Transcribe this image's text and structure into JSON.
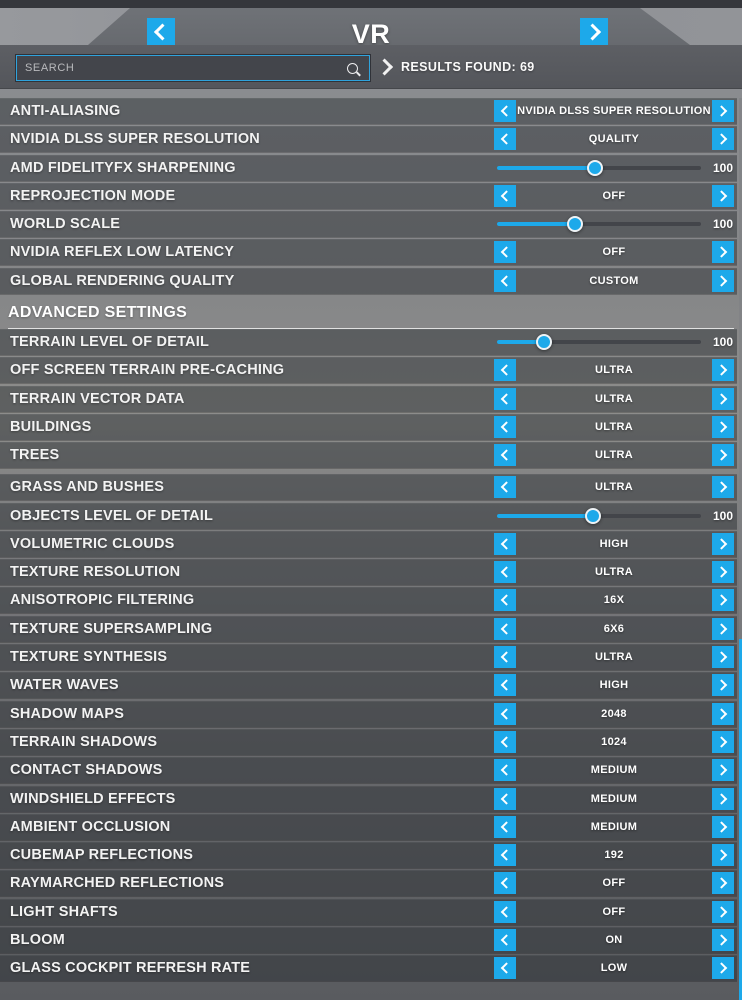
{
  "colors": {
    "accent": "#1da9ea"
  },
  "header": {
    "title": "VR",
    "prev_icon": "chevron-left",
    "next_icon": "chevron-right"
  },
  "search": {
    "placeholder": "SEARCH",
    "icon": "magnifier",
    "results_icon": "chevron-right",
    "results_text": "RESULTS FOUND: 69"
  },
  "scrollbar": {
    "thumb_top_pct": 60,
    "thumb_height_pct": 40
  },
  "groups": [
    {
      "heading": "",
      "rows": [
        {
          "label": "ANTI-ALIASING",
          "type": "selector",
          "value": "NVIDIA DLSS SUPER RESOLUTION"
        },
        {
          "label": "NVIDIA DLSS SUPER RESOLUTION",
          "type": "selector",
          "value": "QUALITY"
        },
        {
          "label": "AMD FIDELITYFX SHARPENING",
          "type": "slider",
          "value": "100",
          "percent": 49
        },
        {
          "label": "REPROJECTION MODE",
          "type": "selector",
          "value": "OFF"
        },
        {
          "label": "WORLD SCALE",
          "type": "slider",
          "value": "100",
          "percent": 39
        },
        {
          "label": "NVIDIA REFLEX LOW LATENCY",
          "type": "selector",
          "value": "OFF"
        },
        {
          "label": "GLOBAL RENDERING QUALITY",
          "type": "selector",
          "value": "CUSTOM"
        }
      ]
    },
    {
      "heading": "ADVANCED SETTINGS",
      "rows": [
        {
          "label": "TERRAIN LEVEL OF DETAIL",
          "type": "slider",
          "value": "100",
          "percent": 24
        },
        {
          "label": "OFF SCREEN TERRAIN PRE-CACHING",
          "type": "selector",
          "value": "ULTRA"
        },
        {
          "label": "TERRAIN VECTOR DATA",
          "type": "selector",
          "value": "ULTRA"
        },
        {
          "label": "BUILDINGS",
          "type": "selector",
          "value": "ULTRA"
        },
        {
          "label": "TREES",
          "type": "selector",
          "value": "ULTRA"
        }
      ]
    },
    {
      "heading": "",
      "rows": [
        {
          "label": "GRASS AND BUSHES",
          "type": "selector",
          "value": "ULTRA"
        },
        {
          "label": "OBJECTS LEVEL OF DETAIL",
          "type": "slider",
          "value": "100",
          "percent": 48
        },
        {
          "label": "VOLUMETRIC CLOUDS",
          "type": "selector",
          "value": "HIGH"
        },
        {
          "label": "TEXTURE RESOLUTION",
          "type": "selector",
          "value": "ULTRA"
        },
        {
          "label": "ANISOTROPIC FILTERING",
          "type": "selector",
          "value": "16X"
        },
        {
          "label": "TEXTURE SUPERSAMPLING",
          "type": "selector",
          "value": "6X6"
        },
        {
          "label": "TEXTURE SYNTHESIS",
          "type": "selector",
          "value": "ULTRA"
        },
        {
          "label": "WATER WAVES",
          "type": "selector",
          "value": "HIGH"
        },
        {
          "label": "SHADOW MAPS",
          "type": "selector",
          "value": "2048"
        },
        {
          "label": "TERRAIN SHADOWS",
          "type": "selector",
          "value": "1024"
        },
        {
          "label": "CONTACT SHADOWS",
          "type": "selector",
          "value": "MEDIUM"
        },
        {
          "label": "WINDSHIELD EFFECTS",
          "type": "selector",
          "value": "MEDIUM"
        },
        {
          "label": "AMBIENT OCCLUSION",
          "type": "selector",
          "value": "MEDIUM"
        },
        {
          "label": "CUBEMAP REFLECTIONS",
          "type": "selector",
          "value": "192"
        },
        {
          "label": "RAYMARCHED REFLECTIONS",
          "type": "selector",
          "value": "OFF"
        },
        {
          "label": "LIGHT SHAFTS",
          "type": "selector",
          "value": "OFF"
        },
        {
          "label": "BLOOM",
          "type": "selector",
          "value": "ON"
        },
        {
          "label": "GLASS COCKPIT REFRESH RATE",
          "type": "selector",
          "value": "LOW"
        }
      ]
    }
  ]
}
